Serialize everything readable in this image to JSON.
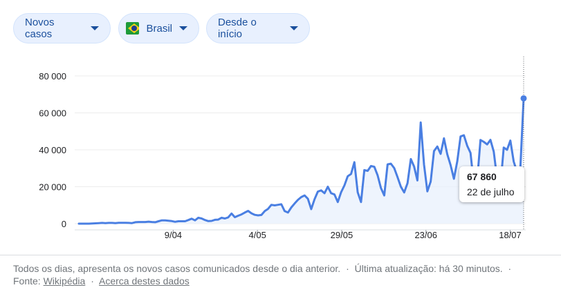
{
  "filters": {
    "metric": "Novos casos",
    "country": "Brasil",
    "range": "Desde o início"
  },
  "tooltip": {
    "value": "67 860",
    "date": "22 de julho"
  },
  "footer": {
    "description": "Todos os dias, apresenta os novos casos comunicados desde o dia anterior.",
    "dot": "·",
    "updated": "Última atualização: há 30 minutos.",
    "source_label": "Fonte:",
    "source_link": "Wikipédia",
    "about_link": "Acerca destes dados"
  },
  "colors": {
    "line": "#4a7fe2",
    "area": "#eaf1fc",
    "chip_bg": "#e8f0fe",
    "chip_text": "#1a4f9c"
  },
  "icons": {
    "country_flag": "brazil-flag-icon",
    "dropdown": "caret-down-icon"
  },
  "chart_data": {
    "type": "area",
    "x_start": "2020-03-12",
    "x_end": "2020-07-22",
    "xtick_labels": [
      {
        "date": "2020-04-09",
        "label": "9/04"
      },
      {
        "date": "2020-05-04",
        "label": "4/05"
      },
      {
        "date": "2020-05-29",
        "label": "29/05"
      },
      {
        "date": "2020-06-23",
        "label": "23/06"
      },
      {
        "date": "2020-07-18",
        "label": "18/07"
      }
    ],
    "yticks": [
      0,
      20000,
      40000,
      60000,
      80000
    ],
    "ytick_labels": [
      "0",
      "20 000",
      "40 000",
      "60 000",
      "80 000"
    ],
    "ylim": [
      0,
      80000
    ],
    "grid": true,
    "highlight": {
      "date": "2020-07-22",
      "value": 67860
    },
    "series": [
      {
        "values": [
          0,
          0,
          0,
          0,
          100,
          200,
          300,
          400,
          300,
          400,
          400,
          300,
          500,
          500,
          500,
          400,
          300,
          800,
          900,
          900,
          900,
          1100,
          900,
          800,
          1300,
          1800,
          1800,
          1600,
          1400,
          1000,
          1300,
          1300,
          1300,
          2000,
          2700,
          1800,
          3200,
          2800,
          2000,
          1400,
          1500,
          2100,
          2200,
          3200,
          2800,
          3400,
          5500,
          3500,
          4300,
          5000,
          6000,
          6900,
          5600,
          4800,
          4500,
          4700,
          6800,
          8000,
          10200,
          9900,
          10200,
          10500,
          6800,
          6000,
          8800,
          10900,
          12900,
          14400,
          15300,
          13500,
          7900,
          13200,
          17400,
          18000,
          16500,
          20000,
          16500,
          15800,
          11700,
          17000,
          20700,
          25700,
          26900,
          33300,
          17000,
          11700,
          29000,
          28600,
          31200,
          30800,
          26200,
          19300,
          15300,
          32100,
          32500,
          30100,
          25200,
          20000,
          16900,
          21900,
          35000,
          31000,
          23400,
          54800,
          32000,
          17500,
          22800,
          39300,
          41800,
          37800,
          46200,
          37600,
          31700,
          24300,
          33700,
          47200,
          47900,
          42200,
          38300,
          21400,
          23300,
          45300,
          44300,
          42900,
          45400,
          39000,
          24400,
          20300,
          41200,
          40000,
          45000,
          33700,
          28000,
          30000,
          67860
        ]
      }
    ]
  }
}
